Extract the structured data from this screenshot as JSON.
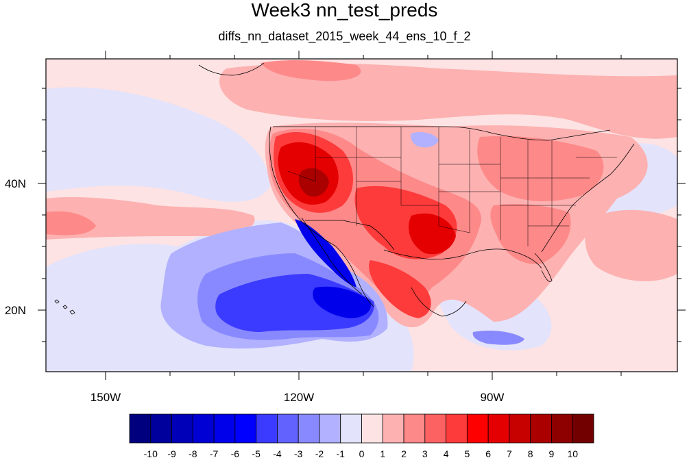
{
  "title": "Week3 nn_test_preds",
  "subtitle": "diffs_nn_dataset_2015_week_44_ens_10_f_2",
  "axes": {
    "x_ticks": [
      "150W",
      "120W",
      "90W"
    ],
    "y_ticks": [
      "40N",
      "20N"
    ]
  },
  "colorbar": {
    "labels": [
      "-10",
      "-9",
      "-8",
      "-7",
      "-6",
      "-5",
      "-4",
      "-3",
      "-2",
      "-1",
      "0",
      "1",
      "2",
      "3",
      "4",
      "5",
      "6",
      "7",
      "8",
      "9",
      "10"
    ],
    "colors": [
      "#00007f",
      "#00009c",
      "#0000b8",
      "#0000d5",
      "#0000ea",
      "#0000ff",
      "#3b3bff",
      "#6262ff",
      "#8989ff",
      "#b1b1ff",
      "#e3e3fb",
      "#fde3e3",
      "#fdb1b1",
      "#fd8989",
      "#fd6262",
      "#fd3b3b",
      "#ff0000",
      "#e40000",
      "#c70000",
      "#ab0000",
      "#8e0000",
      "#720000"
    ]
  },
  "field_colors": {
    "background": "#fde3e3",
    "neutral": "#e3e3fb",
    "warm_light": "#fdb1b1",
    "warm_mid": "#fd8989",
    "warm_strong": "#fd3b3b",
    "warm_deep": "#e40000",
    "warm_core": "#ab0000",
    "cool_light": "#b1b1ff",
    "cool_mid": "#8989ff",
    "cool_strong": "#3b3bff",
    "cool_deep": "#0000ea"
  }
}
